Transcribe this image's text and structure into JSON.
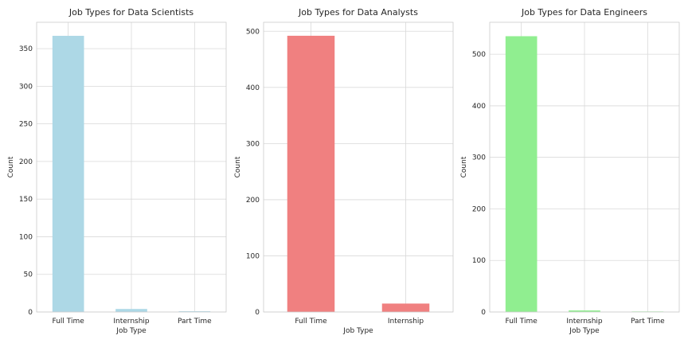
{
  "chart_data": [
    {
      "type": "bar",
      "title": "Job Types for Data Scientists",
      "xlabel": "Job Type",
      "ylabel": "Count",
      "categories": [
        "Full Time",
        "Internship",
        "Part Time"
      ],
      "values": [
        367,
        4,
        1
      ],
      "ylim": [
        0,
        385
      ],
      "yticks": [
        0,
        50,
        100,
        150,
        200,
        250,
        300,
        350
      ],
      "color": "#add8e6",
      "grid": true
    },
    {
      "type": "bar",
      "title": "Job Types for Data Analysts",
      "xlabel": "Job Type",
      "ylabel": "Count",
      "categories": [
        "Full Time",
        "Internship"
      ],
      "values": [
        492,
        15
      ],
      "ylim": [
        0,
        516
      ],
      "yticks": [
        0,
        100,
        200,
        300,
        400,
        500
      ],
      "color": "#f08080",
      "grid": true
    },
    {
      "type": "bar",
      "title": "Job Types for Data Engineers",
      "xlabel": "Job Type",
      "ylabel": "Count",
      "categories": [
        "Full Time",
        "Internship",
        "Part Time"
      ],
      "values": [
        535,
        3,
        1
      ],
      "ylim": [
        0,
        562
      ],
      "yticks": [
        0,
        100,
        200,
        300,
        400,
        500
      ],
      "color": "#90ee90",
      "grid": true
    }
  ]
}
